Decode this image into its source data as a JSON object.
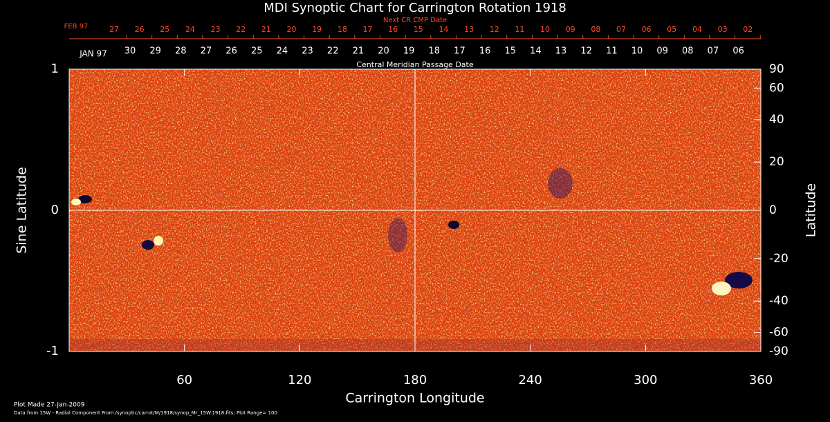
{
  "chart_data": {
    "type": "synoptic-map",
    "title": "MDI Synoptic Chart for Carrington Rotation 1918",
    "xlabel": "Carrington Longitude",
    "ylabel": "Sine Latitude",
    "y2label": "Latitude",
    "xlim": [
      0,
      360
    ],
    "xticks": [
      60,
      120,
      180,
      240,
      300,
      360
    ],
    "ylim": [
      -1,
      1
    ],
    "yticks": [
      -1,
      0,
      1
    ],
    "y2ticks": [
      90,
      60,
      40,
      20,
      0,
      -20,
      -40,
      -60,
      -90
    ],
    "next_cr_axis": {
      "title": "Next CR CMP Date",
      "month": "FEB 97",
      "dates": [
        "27",
        "26",
        "25",
        "24",
        "23",
        "22",
        "21",
        "20",
        "19",
        "18",
        "17",
        "16",
        "15",
        "14",
        "13",
        "12",
        "11",
        "10",
        "09",
        "08",
        "07",
        "06",
        "05",
        "04",
        "03",
        "02"
      ]
    },
    "cmp_axis": {
      "title": "Central Meridian Passage Date",
      "month": "JAN 97",
      "dates": [
        "30",
        "29",
        "28",
        "27",
        "26",
        "25",
        "24",
        "23",
        "22",
        "21",
        "20",
        "19",
        "18",
        "17",
        "16",
        "15",
        "14",
        "13",
        "12",
        "11",
        "10",
        "09",
        "08",
        "07",
        "06"
      ]
    },
    "footer": {
      "plot_made": "Plot Made 27-Jan-2009",
      "source": "Data from 15W - Radial Component From /synoptic/carrot/M/1918/synop_Mr_15W.1918.fits; Plot Range=  100"
    }
  }
}
